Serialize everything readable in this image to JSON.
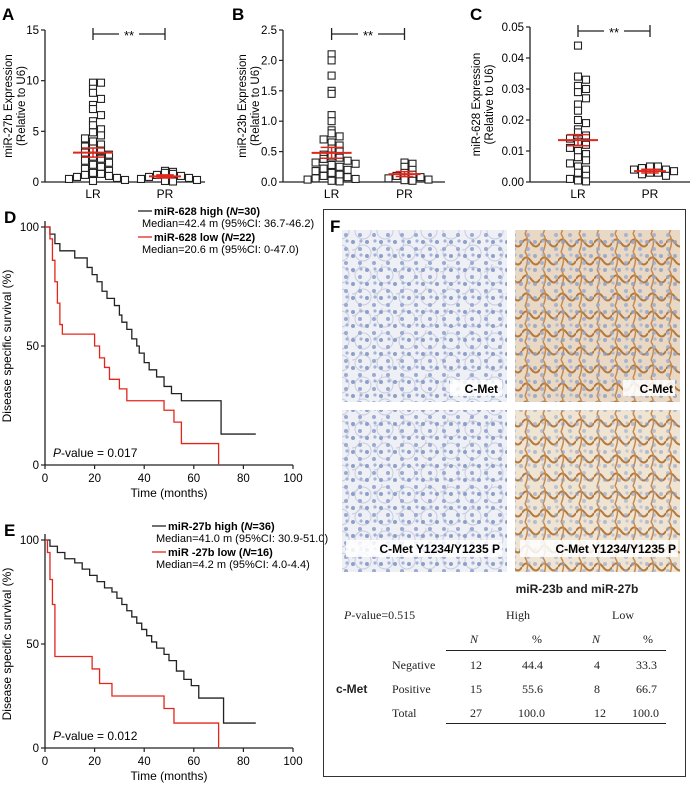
{
  "panels": {
    "A": {
      "letter": "A",
      "ylabel": [
        "miR-27b Expression",
        "(Relative to U6)"
      ],
      "sig": "**",
      "chart_data": {
        "type": "scatter",
        "categories": [
          "LR",
          "PR"
        ],
        "ylim": [
          0,
          15
        ],
        "yticks": [
          "0",
          "5",
          "10",
          "15"
        ],
        "series": [
          {
            "group": "LR",
            "mean": 2.9,
            "sem": 0.45,
            "values": [
              9.8,
              9.8,
              9.2,
              8.8,
              8.2,
              7.6,
              7.2,
              6.6,
              6.0,
              5.6,
              5.2,
              4.9,
              4.6,
              4.3,
              4.0,
              3.7,
              3.5,
              3.3,
              3.1,
              2.9,
              2.7,
              2.5,
              2.3,
              2.1,
              1.9,
              1.7,
              1.5,
              1.3,
              1.1,
              0.9,
              0.8,
              0.7,
              0.6,
              0.5,
              0.4,
              0.3,
              0.2,
              0.1
            ]
          },
          {
            "group": "PR",
            "mean": 0.55,
            "sem": 0.15,
            "values": [
              1.1,
              1.0,
              0.9,
              0.8,
              0.7,
              0.6,
              0.5,
              0.4,
              0.3,
              0.2,
              0.1,
              0.05
            ]
          }
        ]
      }
    },
    "B": {
      "letter": "B",
      "ylabel": [
        "miR-23b Expression",
        "(Relative to U6)"
      ],
      "sig": "**",
      "chart_data": {
        "type": "scatter",
        "categories": [
          "LR",
          "PR"
        ],
        "ylim": [
          0,
          2.5
        ],
        "yticks": [
          "0.0",
          "0.5",
          "1.0",
          "1.5",
          "2.0",
          "2.5"
        ],
        "series": [
          {
            "group": "LR",
            "mean": 0.48,
            "sem": 0.09,
            "values": [
              2.1,
              2.0,
              1.75,
              1.5,
              1.45,
              1.1,
              1.0,
              0.85,
              0.8,
              0.75,
              0.7,
              0.65,
              0.6,
              0.55,
              0.5,
              0.45,
              0.42,
              0.4,
              0.38,
              0.35,
              0.32,
              0.3,
              0.28,
              0.25,
              0.22,
              0.2,
              0.18,
              0.15,
              0.12,
              0.1,
              0.08,
              0.06,
              0.05,
              0.04,
              0.02,
              0.01
            ]
          },
          {
            "group": "PR",
            "mean": 0.13,
            "sem": 0.04,
            "values": [
              0.32,
              0.3,
              0.25,
              0.2,
              0.15,
              0.12,
              0.1,
              0.08,
              0.06,
              0.04,
              0.03,
              0.02
            ]
          }
        ]
      }
    },
    "C": {
      "letter": "C",
      "ylabel": [
        "miR-628 Expression",
        "(Relative to U6)"
      ],
      "sig": "**",
      "chart_data": {
        "type": "scatter",
        "categories": [
          "LR",
          "PR"
        ],
        "ylim": [
          0,
          0.05
        ],
        "yticks": [
          "0.00",
          "0.01",
          "0.02",
          "0.03",
          "0.04",
          "0.05"
        ],
        "series": [
          {
            "group": "LR",
            "mean": 0.0135,
            "sem": 0.0018,
            "values": [
              0.044,
              0.034,
              0.033,
              0.031,
              0.03,
              0.029,
              0.027,
              0.025,
              0.023,
              0.02,
              0.019,
              0.017,
              0.016,
              0.015,
              0.014,
              0.013,
              0.012,
              0.011,
              0.01,
              0.009,
              0.008,
              0.007,
              0.006,
              0.005,
              0.004,
              0.003,
              0.002,
              0.001,
              0.0005,
              0.0002
            ]
          },
          {
            "group": "PR",
            "mean": 0.0035,
            "sem": 0.0006,
            "values": [
              0.005,
              0.005,
              0.0045,
              0.004,
              0.004,
              0.0035,
              0.003,
              0.003,
              0.0025,
              0.002
            ]
          }
        ]
      }
    },
    "D": {
      "letter": "D",
      "ylabel": "Disease specific survival (%)",
      "xlabel": "Time (months)",
      "pvalue": "-value = 0.017",
      "legend": [
        {
          "name": "miR-628 high (",
          "n": "=30)",
          "median": "Median=42.4 m (95%CI: 36.7-46.2)",
          "color": "#222222"
        },
        {
          "name": "miR-628 low (",
          "n": "=22)",
          "median": "Median=20.6 m (95%CI: 0-47.0)",
          "color": "#e3261c"
        }
      ],
      "chart_data": {
        "type": "line",
        "xlim": [
          0,
          100
        ],
        "ylim": [
          0,
          100
        ],
        "xticks": [
          "0",
          "20",
          "40",
          "60",
          "80",
          "100"
        ],
        "yticks": [
          "0",
          "50",
          "100"
        ],
        "series": [
          {
            "group": "high",
            "steps": [
              [
                0,
                100
              ],
              [
                2,
                97
              ],
              [
                4,
                93
              ],
              [
                6,
                90
              ],
              [
                12,
                87
              ],
              [
                17,
                83
              ],
              [
                19,
                80
              ],
              [
                21,
                77
              ],
              [
                23,
                73
              ],
              [
                25,
                70
              ],
              [
                28,
                67
              ],
              [
                30,
                63
              ],
              [
                31,
                60
              ],
              [
                33,
                57
              ],
              [
                35,
                53
              ],
              [
                37,
                50
              ],
              [
                38,
                47
              ],
              [
                40,
                43
              ],
              [
                42,
                40
              ],
              [
                45,
                37
              ],
              [
                48,
                33
              ],
              [
                51,
                30
              ],
              [
                55,
                27
              ],
              [
                60,
                27
              ],
              [
                71,
                13
              ],
              [
                85,
                13
              ]
            ]
          },
          {
            "group": "low",
            "steps": [
              [
                0,
                100
              ],
              [
                2,
                95
              ],
              [
                3,
                86
              ],
              [
                4,
                77
              ],
              [
                5,
                68
              ],
              [
                6,
                59
              ],
              [
                7,
                55
              ],
              [
                20,
                50
              ],
              [
                22,
                45
              ],
              [
                24,
                41
              ],
              [
                26,
                36
              ],
              [
                30,
                32
              ],
              [
                33,
                27
              ],
              [
                45,
                27
              ],
              [
                48,
                23
              ],
              [
                52,
                18
              ],
              [
                55,
                9
              ],
              [
                60,
                9
              ],
              [
                70,
                0
              ]
            ]
          }
        ]
      }
    },
    "E": {
      "letter": "E",
      "ylabel": "Disease specific survival (%)",
      "xlabel": "Time (months)",
      "pvalue": "-value = 0.012",
      "legend": [
        {
          "name": "miR-27b high (",
          "n": "=36)",
          "median": "Median=41.0 m (95%CI: 30.9-51.0)",
          "color": "#222222"
        },
        {
          "name": "miR -27b low (",
          "n": "=16)",
          "median": "Median=4.2 m (95%CI: 4.0-4.4)",
          "color": "#e3261c"
        }
      ],
      "chart_data": {
        "type": "line",
        "xlim": [
          0,
          100
        ],
        "ylim": [
          0,
          100
        ],
        "xticks": [
          "0",
          "20",
          "40",
          "60",
          "80",
          "100"
        ],
        "yticks": [
          "0",
          "50",
          "100"
        ],
        "series": [
          {
            "group": "high",
            "steps": [
              [
                0,
                100
              ],
              [
                2,
                97
              ],
              [
                5,
                94
              ],
              [
                8,
                91
              ],
              [
                12,
                89
              ],
              [
                15,
                86
              ],
              [
                18,
                83
              ],
              [
                21,
                80
              ],
              [
                24,
                77
              ],
              [
                27,
                75
              ],
              [
                29,
                72
              ],
              [
                31,
                69
              ],
              [
                33,
                66
              ],
              [
                35,
                63
              ],
              [
                37,
                60
              ],
              [
                39,
                57
              ],
              [
                41,
                54
              ],
              [
                43,
                51
              ],
              [
                45,
                48
              ],
              [
                48,
                45
              ],
              [
                50,
                42
              ],
              [
                53,
                37
              ],
              [
                56,
                33
              ],
              [
                59,
                30
              ],
              [
                62,
                24
              ],
              [
                72,
                12
              ],
              [
                85,
                12
              ]
            ]
          },
          {
            "group": "low",
            "steps": [
              [
                0,
                100
              ],
              [
                1,
                94
              ],
              [
                2,
                81
              ],
              [
                3,
                69
              ],
              [
                4,
                44
              ],
              [
                19,
                38
              ],
              [
                22,
                31
              ],
              [
                27,
                25
              ],
              [
                40,
                25
              ],
              [
                48,
                19
              ],
              [
                52,
                12
              ],
              [
                62,
                12
              ],
              [
                70,
                0
              ]
            ]
          }
        ]
      }
    },
    "F": {
      "letter": "F",
      "tissue_labels": [
        "C-Met",
        "C-Met",
        "C-Met Y1234/Y1235 P",
        "C-Met Y1234/Y1235 P"
      ],
      "table": {
        "header": "miR-23b and miR-27b",
        "pvalue": "-value=0.515",
        "group_high": "High",
        "group_low": "Low",
        "col_n": "N",
        "col_pct": "%",
        "row_group": "c-Met",
        "rows": [
          {
            "label": "Negative",
            "n_high": "12",
            "pct_high": "44.4",
            "n_low": "4",
            "pct_low": "33.3"
          },
          {
            "label": "Positive",
            "n_high": "15",
            "pct_high": "55.6",
            "n_low": "8",
            "pct_low": "66.7"
          },
          {
            "label": "Total",
            "n_high": "27",
            "pct_high": "100.0",
            "n_low": "12",
            "pct_low": "100.0"
          }
        ]
      }
    }
  },
  "colors": {
    "red": "#e3261c",
    "black": "#222222",
    "stain_brown": "#b5793c",
    "nuclei_blue": "#8ea0c8"
  }
}
